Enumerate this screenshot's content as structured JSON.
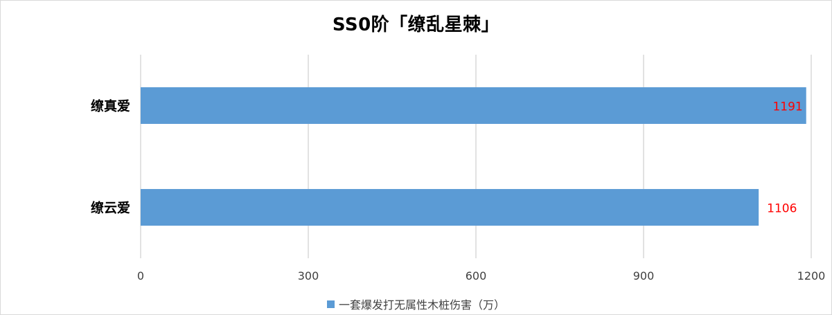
{
  "chart_data": {
    "type": "bar",
    "orientation": "horizontal",
    "title": "SS0阶「缭乱星棘」",
    "categories": [
      "缭真爱",
      "缭云爱"
    ],
    "series": [
      {
        "name": "一套爆发打无属性木桩伤害（万）",
        "values": [
          1191,
          1106
        ],
        "color": "#5b9bd5"
      }
    ],
    "xlim": [
      0,
      1200
    ],
    "xticks": [
      0,
      300,
      600,
      900,
      1200
    ],
    "grid": true,
    "legend_position": "bottom",
    "data_label_color": "#ff0000"
  }
}
